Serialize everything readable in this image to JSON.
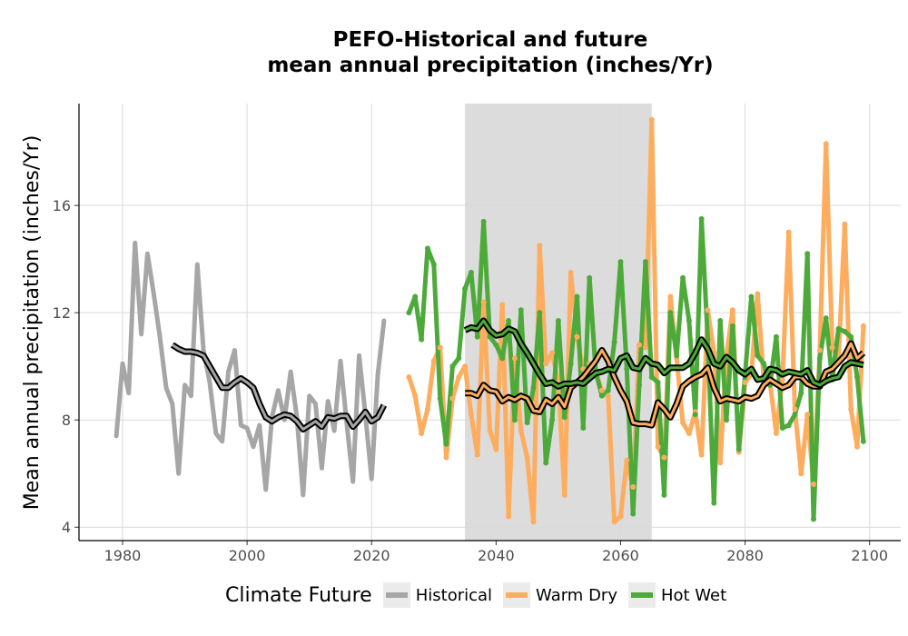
{
  "chart_data": {
    "type": "line",
    "title": [
      "PEFO-Historical and future",
      "mean annual precipitation (inches/Yr)"
    ],
    "xlabel": "",
    "ylabel": "Mean annual precipitation (inches/Yr)",
    "xlim": [
      1973,
      2105
    ],
    "ylim": [
      3.5,
      19.8
    ],
    "xticks": [
      1980,
      2000,
      2020,
      2040,
      2060,
      2080,
      2100
    ],
    "yticks": [
      4,
      8,
      12,
      16
    ],
    "grid": true,
    "shaded_period": [
      2035,
      2065
    ],
    "shaded_color": "#dcdcdc",
    "legend_title": "Climate Future",
    "legend_position": "bottom",
    "series": [
      {
        "name": "Historical",
        "color": "#a6a6a6",
        "x": [
          1979,
          1980,
          1981,
          1982,
          1983,
          1984,
          1985,
          1986,
          1987,
          1988,
          1989,
          1990,
          1991,
          1992,
          1993,
          1994,
          1995,
          1996,
          1997,
          1998,
          1999,
          2000,
          2001,
          2002,
          2003,
          2004,
          2005,
          2006,
          2007,
          2008,
          2009,
          2010,
          2011,
          2012,
          2013,
          2014,
          2015,
          2016,
          2017,
          2018,
          2019,
          2020,
          2021,
          2022
        ],
        "values": [
          7.4,
          10.1,
          9.0,
          14.6,
          11.2,
          14.2,
          12.7,
          11.1,
          9.2,
          8.6,
          6.0,
          9.3,
          8.9,
          13.8,
          10.6,
          9.4,
          7.5,
          7.2,
          9.8,
          10.6,
          7.8,
          7.7,
          7.0,
          7.8,
          5.4,
          8.1,
          9.1,
          8.0,
          9.8,
          8.1,
          5.2,
          8.9,
          8.6,
          6.2,
          8.7,
          7.6,
          10.2,
          7.9,
          5.7,
          10.4,
          8.2,
          5.8,
          9.7,
          11.7
        ],
        "smooth_x": [
          1988,
          1989,
          1990,
          1991,
          1992,
          1993,
          1994,
          1995,
          1996,
          1997,
          1998,
          1999,
          2000,
          2001,
          2002,
          2003,
          2004,
          2005,
          2006,
          2007,
          2008,
          2009,
          2010,
          2011,
          2012,
          2013,
          2014,
          2015,
          2016,
          2017,
          2018,
          2019,
          2020,
          2021,
          2022
        ],
        "smooth": [
          10.8,
          10.65,
          10.55,
          10.55,
          10.5,
          10.4,
          10.0,
          9.6,
          9.2,
          9.2,
          9.4,
          9.55,
          9.4,
          9.2,
          8.6,
          8.1,
          7.95,
          8.1,
          8.2,
          8.15,
          7.95,
          7.65,
          7.8,
          7.95,
          7.75,
          8.1,
          8.05,
          8.15,
          8.15,
          7.75,
          8.0,
          8.3,
          7.95,
          8.1,
          8.55
        ]
      },
      {
        "name": "Warm Dry",
        "color": "#fdad5d",
        "x": [
          2026,
          2027,
          2028,
          2029,
          2030,
          2031,
          2032,
          2033,
          2034,
          2035,
          2036,
          2037,
          2038,
          2039,
          2040,
          2041,
          2042,
          2043,
          2044,
          2045,
          2046,
          2047,
          2048,
          2049,
          2050,
          2051,
          2052,
          2053,
          2054,
          2055,
          2056,
          2057,
          2058,
          2059,
          2060,
          2061,
          2062,
          2063,
          2064,
          2065,
          2066,
          2067,
          2068,
          2069,
          2070,
          2071,
          2072,
          2073,
          2074,
          2075,
          2076,
          2077,
          2078,
          2079,
          2080,
          2081,
          2082,
          2083,
          2084,
          2085,
          2086,
          2087,
          2088,
          2089,
          2090,
          2091,
          2092,
          2093,
          2094,
          2095,
          2096,
          2097,
          2098,
          2099
        ],
        "values": [
          9.6,
          8.9,
          7.5,
          8.4,
          10.2,
          10.7,
          6.6,
          8.8,
          9.6,
          10.0,
          8.2,
          6.7,
          12.4,
          7.6,
          6.9,
          12.3,
          4.4,
          10.3,
          7.6,
          6.6,
          4.2,
          14.5,
          10.1,
          10.5,
          9.4,
          5.2,
          13.5,
          11.1,
          9.9,
          10.1,
          9.8,
          9.1,
          8.9,
          4.2,
          4.4,
          6.5,
          5.5,
          10.8,
          10.7,
          19.2,
          7.0,
          6.6,
          12.6,
          10.3,
          7.9,
          7.5,
          8.3,
          6.7,
          12.1,
          10.5,
          6.4,
          10.4,
          12.1,
          6.8,
          9.4,
          9.7,
          12.7,
          9.5,
          9.4,
          7.5,
          9.5,
          15.0,
          8.4,
          6.0,
          8.2,
          5.6,
          10.6,
          18.3,
          10.7,
          10.2,
          15.3,
          8.4,
          7.0,
          11.5
        ],
        "smooth_x": [
          2035,
          2036,
          2037,
          2038,
          2039,
          2040,
          2041,
          2042,
          2043,
          2044,
          2045,
          2046,
          2047,
          2048,
          2049,
          2050,
          2051,
          2052,
          2053,
          2054,
          2055,
          2056,
          2057,
          2058,
          2059,
          2060,
          2061,
          2062,
          2063,
          2064,
          2065,
          2066,
          2067,
          2068,
          2069,
          2070,
          2071,
          2072,
          2073,
          2074,
          2075,
          2076,
          2077,
          2078,
          2079,
          2080,
          2081,
          2082,
          2083,
          2084,
          2085,
          2086,
          2087,
          2088,
          2089,
          2090,
          2091,
          2092,
          2093,
          2094,
          2095,
          2096,
          2097,
          2098,
          2099
        ],
        "smooth": [
          9.0,
          9.0,
          8.9,
          9.3,
          9.1,
          9.05,
          8.7,
          8.85,
          8.75,
          8.9,
          8.8,
          8.35,
          8.3,
          8.75,
          8.6,
          8.85,
          8.5,
          9.2,
          9.4,
          9.6,
          9.9,
          10.2,
          10.6,
          10.2,
          9.6,
          9.1,
          8.7,
          7.9,
          7.85,
          7.85,
          7.8,
          8.65,
          8.4,
          8.1,
          8.6,
          9.25,
          9.45,
          9.6,
          9.7,
          9.95,
          9.2,
          8.7,
          8.8,
          8.75,
          8.7,
          8.85,
          8.8,
          8.9,
          9.3,
          9.5,
          9.35,
          9.2,
          9.3,
          9.6,
          9.6,
          9.35,
          9.25,
          9.25,
          9.8,
          9.9,
          10.15,
          10.4,
          10.85,
          10.3,
          10.5
        ]
      },
      {
        "name": "Hot Wet",
        "color": "#4daa3a",
        "x": [
          2026,
          2027,
          2028,
          2029,
          2030,
          2031,
          2032,
          2033,
          2034,
          2035,
          2036,
          2037,
          2038,
          2039,
          2040,
          2041,
          2042,
          2043,
          2044,
          2045,
          2046,
          2047,
          2048,
          2049,
          2050,
          2051,
          2052,
          2053,
          2054,
          2055,
          2056,
          2057,
          2058,
          2059,
          2060,
          2061,
          2062,
          2063,
          2064,
          2065,
          2066,
          2067,
          2068,
          2069,
          2070,
          2071,
          2072,
          2073,
          2074,
          2075,
          2076,
          2077,
          2078,
          2079,
          2080,
          2081,
          2082,
          2083,
          2084,
          2085,
          2086,
          2087,
          2088,
          2089,
          2090,
          2091,
          2092,
          2093,
          2094,
          2095,
          2096,
          2097,
          2098,
          2099
        ],
        "values": [
          12.0,
          12.6,
          11.0,
          14.4,
          13.8,
          8.8,
          7.1,
          10.0,
          10.3,
          12.9,
          13.5,
          11.1,
          15.4,
          11.1,
          10.8,
          10.3,
          11.7,
          8.0,
          12.1,
          7.9,
          9.2,
          12.0,
          6.4,
          8.0,
          11.7,
          8.1,
          10.1,
          12.6,
          7.7,
          13.3,
          9.8,
          8.9,
          9.1,
          10.9,
          13.9,
          9.9,
          4.5,
          9.3,
          13.9,
          9.6,
          9.4,
          5.2,
          12.0,
          10.4,
          13.3,
          11.7,
          8.2,
          15.5,
          11.0,
          4.9,
          11.7,
          8.0,
          11.5,
          6.9,
          9.7,
          12.6,
          10.4,
          10.1,
          9.3,
          11.1,
          7.7,
          7.8,
          8.2,
          9.0,
          14.2,
          4.3,
          10.3,
          11.8,
          9.5,
          11.4,
          11.3,
          11.1,
          9.6,
          7.2
        ],
        "smooth_x": [
          2035,
          2036,
          2037,
          2038,
          2039,
          2040,
          2041,
          2042,
          2043,
          2044,
          2045,
          2046,
          2047,
          2048,
          2049,
          2050,
          2051,
          2052,
          2053,
          2054,
          2055,
          2056,
          2057,
          2058,
          2059,
          2060,
          2061,
          2062,
          2063,
          2064,
          2065,
          2066,
          2067,
          2068,
          2069,
          2070,
          2071,
          2072,
          2073,
          2074,
          2075,
          2076,
          2077,
          2078,
          2079,
          2080,
          2081,
          2082,
          2083,
          2084,
          2085,
          2086,
          2087,
          2088,
          2089,
          2090,
          2091,
          2092,
          2093,
          2094,
          2095,
          2096,
          2097,
          2098,
          2099
        ],
        "smooth": [
          11.35,
          11.45,
          11.4,
          11.7,
          11.35,
          11.15,
          11.2,
          11.4,
          11.3,
          10.85,
          10.5,
          10.1,
          9.7,
          9.35,
          9.4,
          9.25,
          9.35,
          9.35,
          9.4,
          9.35,
          9.55,
          9.75,
          9.8,
          9.9,
          9.85,
          10.3,
          10.4,
          9.95,
          9.9,
          10.3,
          10.1,
          10.05,
          9.75,
          9.95,
          9.95,
          9.95,
          10.1,
          10.5,
          11.0,
          10.65,
          10.1,
          10.0,
          10.35,
          10.15,
          9.85,
          9.7,
          9.9,
          9.5,
          9.55,
          9.9,
          9.85,
          9.7,
          9.8,
          9.75,
          9.7,
          9.85,
          9.4,
          9.3,
          9.45,
          9.55,
          9.6,
          10.0,
          10.15,
          10.1,
          10.05
        ]
      }
    ]
  }
}
